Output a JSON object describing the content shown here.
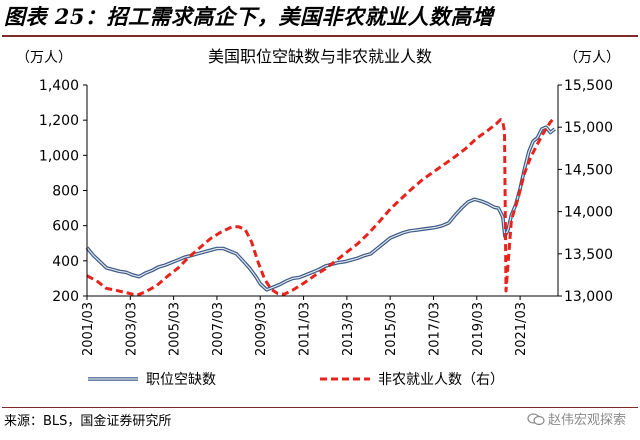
{
  "figure": {
    "title": "图表 25：招工需求高企下，美国非农就业人数高增",
    "source": "来源：BLS，国金证券研究所",
    "watermark": "赵伟宏观探索"
  },
  "chart_data": {
    "type": "line",
    "title": "美国职位空缺数与非农就业人数",
    "left_unit": "（万人）",
    "right_unit": "（万人）",
    "ylim_left": [
      200,
      1400
    ],
    "ylim_right": [
      13000,
      15500
    ],
    "yticks_left": [
      "200",
      "400",
      "600",
      "800",
      "1,000",
      "1,200",
      "1,400"
    ],
    "yticks_right": [
      "13,000",
      "13,500",
      "14,000",
      "14,500",
      "15,000",
      "15,500"
    ],
    "xlim": [
      2001.0,
      2022.75
    ],
    "xticks": [
      "2001/03",
      "2003/03",
      "2005/03",
      "2007/03",
      "2009/03",
      "2011/03",
      "2013/03",
      "2015/03",
      "2017/03",
      "2019/03",
      "2021/03"
    ],
    "grid": false,
    "legend_position": "bottom",
    "series": [
      {
        "name": "职位空缺数",
        "axis": "left",
        "color": "#3c5a85",
        "style": "double",
        "x": [
          2001.0,
          2001.3,
          2001.6,
          2001.9,
          2002.2,
          2002.5,
          2002.8,
          2003.1,
          2003.4,
          2003.7,
          2004.0,
          2004.3,
          2004.6,
          2004.9,
          2005.2,
          2005.5,
          2005.8,
          2006.1,
          2006.4,
          2006.7,
          2007.0,
          2007.3,
          2007.6,
          2007.9,
          2008.2,
          2008.5,
          2008.8,
          2009.0,
          2009.3,
          2009.6,
          2009.9,
          2010.2,
          2010.5,
          2010.8,
          2011.1,
          2011.4,
          2011.7,
          2012.0,
          2012.3,
          2012.6,
          2012.9,
          2013.2,
          2013.5,
          2013.8,
          2014.1,
          2014.4,
          2014.7,
          2015.0,
          2015.3,
          2015.6,
          2015.9,
          2016.2,
          2016.5,
          2016.8,
          2017.1,
          2017.4,
          2017.7,
          2018.0,
          2018.3,
          2018.6,
          2018.9,
          2019.2,
          2019.5,
          2019.8,
          2020.0,
          2020.2,
          2020.3,
          2020.45,
          2020.6,
          2020.8,
          2021.0,
          2021.2,
          2021.4,
          2021.6,
          2021.8,
          2022.0,
          2022.2,
          2022.4,
          2022.6
        ],
        "values": [
          475,
          430,
          395,
          360,
          350,
          340,
          335,
          320,
          310,
          330,
          345,
          365,
          375,
          390,
          405,
          420,
          430,
          440,
          450,
          460,
          470,
          470,
          455,
          440,
          400,
          360,
          310,
          270,
          235,
          250,
          265,
          285,
          300,
          305,
          320,
          335,
          350,
          370,
          380,
          390,
          395,
          405,
          415,
          430,
          440,
          470,
          500,
          530,
          545,
          560,
          570,
          575,
          580,
          585,
          590,
          600,
          615,
          660,
          700,
          735,
          750,
          740,
          725,
          705,
          700,
          650,
          540,
          580,
          660,
          720,
          810,
          920,
          1020,
          1080,
          1100,
          1150,
          1160,
          1130,
          1150
        ]
      },
      {
        "name": "非农就业人数（右）",
        "axis": "right",
        "color": "#e8231c",
        "style": "dashed",
        "x": [
          2001.0,
          2001.5,
          2001.9,
          2002.3,
          2002.8,
          2003.3,
          2003.7,
          2004.2,
          2004.7,
          2005.2,
          2005.7,
          2006.2,
          2006.7,
          2007.2,
          2007.7,
          2008.0,
          2008.3,
          2008.6,
          2008.9,
          2009.2,
          2009.5,
          2009.8,
          2010.1,
          2010.5,
          2011.0,
          2011.5,
          2012.0,
          2012.5,
          2013.0,
          2013.5,
          2014.0,
          2014.5,
          2015.0,
          2015.5,
          2016.0,
          2016.5,
          2017.0,
          2017.5,
          2018.0,
          2018.5,
          2019.0,
          2019.5,
          2019.9,
          2020.1,
          2020.2,
          2020.28,
          2020.35,
          2020.6,
          2020.9,
          2021.2,
          2021.5,
          2021.8,
          2022.1,
          2022.4,
          2022.6
        ],
        "values": [
          13240,
          13170,
          13090,
          13070,
          13040,
          13010,
          13050,
          13120,
          13230,
          13330,
          13460,
          13570,
          13680,
          13760,
          13820,
          13820,
          13790,
          13640,
          13400,
          13200,
          13080,
          13030,
          13020,
          13070,
          13150,
          13240,
          13320,
          13420,
          13520,
          13620,
          13740,
          13880,
          14030,
          14150,
          14270,
          14380,
          14470,
          14560,
          14650,
          14750,
          14870,
          14960,
          15040,
          15090,
          15060,
          14950,
          13060,
          13900,
          14150,
          14450,
          14650,
          14800,
          14940,
          15060,
          15120
        ]
      }
    ]
  }
}
